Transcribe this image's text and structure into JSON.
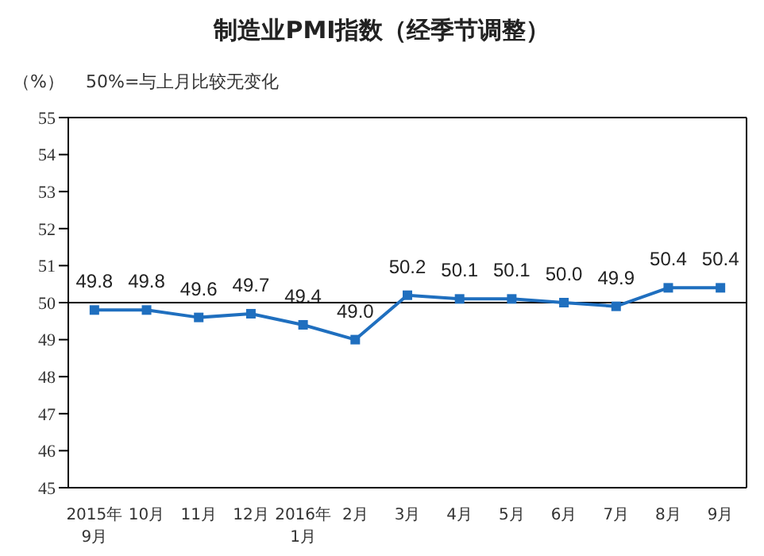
{
  "chart_data": {
    "type": "line",
    "title": "制造业PMI指数（经季节调整）",
    "ylabel": "（%）",
    "annotations": [
      "50%=与上月比较无变化"
    ],
    "categories": [
      "2015年\n9月",
      "10月",
      "11月",
      "12月",
      "2016年\n1月",
      "2月",
      "3月",
      "4月",
      "5月",
      "6月",
      "7月",
      "8月",
      "9月"
    ],
    "series": [
      {
        "color": "#1f6fbf",
        "values": [
          49.8,
          49.8,
          49.6,
          49.7,
          49.4,
          49.0,
          50.2,
          50.1,
          50.1,
          50.0,
          49.9,
          50.4,
          50.4
        ],
        "value_labels": [
          "49.8",
          "49.8",
          "49.6",
          "49.7",
          "49.4",
          "49.0",
          "50.2",
          "50.1",
          "50.1",
          "50.0",
          "49.9",
          "50.4",
          "50.4"
        ]
      }
    ],
    "ylim": [
      45,
      55
    ],
    "yticks": [
      45,
      46,
      47,
      48,
      49,
      50,
      51,
      52,
      53,
      54,
      55
    ],
    "ref_lines": [
      {
        "axis": "y",
        "value": 50,
        "color": "#000000"
      }
    ],
    "marker": "square"
  }
}
